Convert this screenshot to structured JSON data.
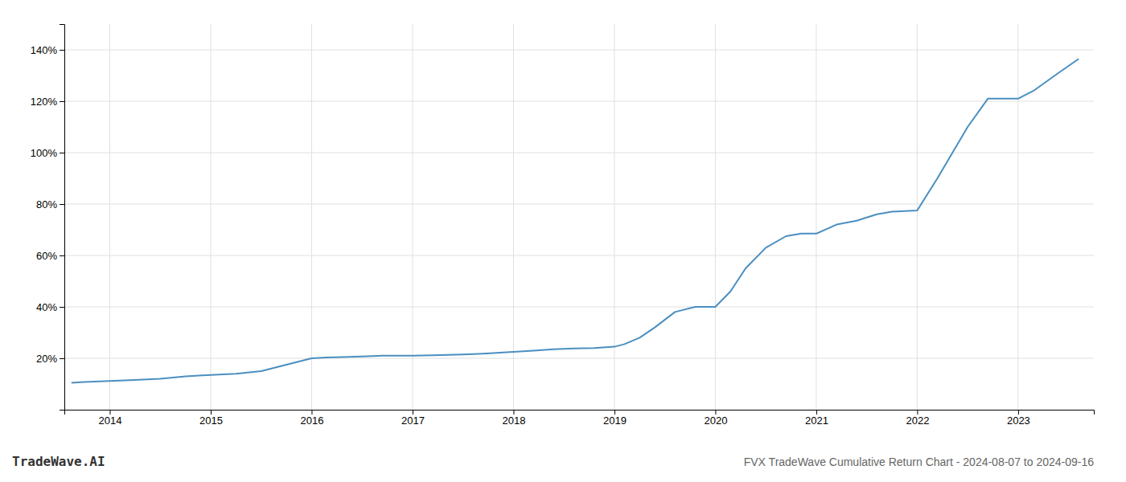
{
  "chart_data": {
    "type": "line",
    "title": "FVX TradeWave Cumulative Return Chart - 2024-08-07 to 2024-09-16",
    "annotations": [
      "TradeWave.AI"
    ],
    "x": [
      2013.62,
      2013.75,
      2014.0,
      2014.2,
      2014.5,
      2014.75,
      2015.0,
      2015.25,
      2015.5,
      2015.75,
      2016.0,
      2016.15,
      2016.3,
      2016.5,
      2016.7,
      2017.0,
      2017.2,
      2017.5,
      2017.7,
      2018.0,
      2018.2,
      2018.4,
      2018.6,
      2018.8,
      2019.0,
      2019.1,
      2019.25,
      2019.4,
      2019.6,
      2019.8,
      2020.0,
      2020.15,
      2020.3,
      2020.5,
      2020.7,
      2020.85,
      2021.0,
      2021.2,
      2021.4,
      2021.6,
      2021.75,
      2022.0,
      2022.2,
      2022.5,
      2022.7,
      2023.0,
      2023.15,
      2023.4,
      2023.6
    ],
    "values": [
      10.5,
      10.8,
      11.2,
      11.5,
      12.0,
      13.0,
      13.5,
      14.0,
      15.0,
      17.5,
      20.0,
      20.3,
      20.5,
      20.7,
      21.0,
      21.0,
      21.2,
      21.5,
      21.8,
      22.5,
      23.0,
      23.5,
      23.8,
      24.0,
      24.5,
      25.5,
      28.0,
      32.0,
      38.0,
      40.0,
      40.0,
      46.0,
      55.0,
      63.0,
      67.5,
      68.5,
      68.5,
      72.0,
      73.5,
      76.0,
      77.0,
      77.5,
      90.0,
      110.0,
      121.0,
      121.0,
      124.0,
      131.0,
      136.5
    ],
    "color": "#4a8fc0",
    "xlim": [
      2013.55,
      2023.75
    ],
    "xticks": [
      2014,
      2015,
      2016,
      2017,
      2018,
      2019,
      2020,
      2021,
      2022,
      2023
    ],
    "ylim": [
      0,
      150
    ],
    "yticks": [
      {
        "value": 20,
        "label": "20%"
      },
      {
        "value": 40,
        "label": "40%"
      },
      {
        "value": 60,
        "label": "60%"
      },
      {
        "value": 80,
        "label": "80%"
      },
      {
        "value": 100,
        "label": "100%"
      },
      {
        "value": 120,
        "label": "120%"
      },
      {
        "value": 140,
        "label": "140%"
      }
    ],
    "grid": true
  }
}
